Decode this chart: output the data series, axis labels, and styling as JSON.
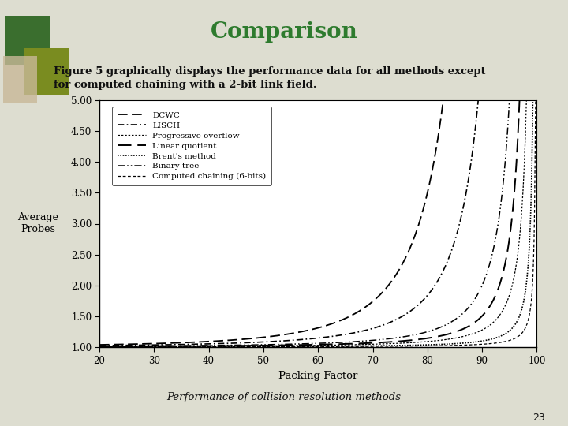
{
  "title": "Comparison",
  "title_color": "#2e7b2e",
  "subtitle": "Figure 5 graphically displays the performance data for all methods except\nfor computed chaining with a 2-bit link field.",
  "xlabel": "Packing Factor",
  "ylabel": "Average\nProbes",
  "footer": "Performance of collision resolution methods",
  "page_number": "23",
  "xmin": 20,
  "xmax": 100,
  "ymin": 1.0,
  "ymax": 5.0,
  "yticks": [
    1.0,
    1.5,
    2.0,
    2.5,
    3.0,
    3.5,
    4.0,
    4.5,
    5.0
  ],
  "xticks": [
    20,
    30,
    40,
    50,
    60,
    70,
    80,
    90,
    100
  ],
  "bg_color": "#ddddd0",
  "top_bar_color1": "#b8a820",
  "top_bar_color2": "#888888",
  "bottom_bar_color": "#b8a820",
  "legend_entries": [
    "DCWC",
    "LISCH",
    "Progressive overflow",
    "Linear quotient",
    "Brent's method",
    "Binary tree",
    "Computed chaining (6-bits)"
  ]
}
